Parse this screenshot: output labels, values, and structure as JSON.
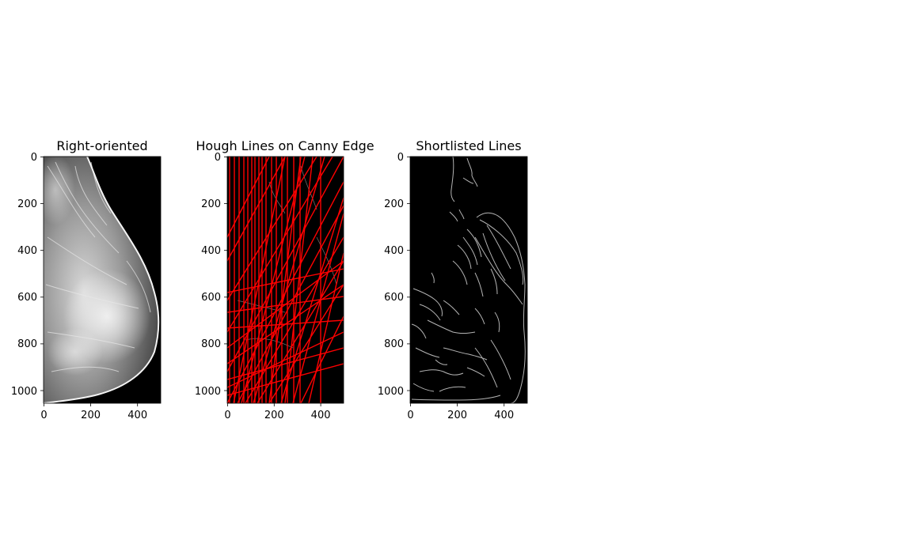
{
  "figure": {
    "panels": [
      {
        "id": "right-oriented",
        "title": "Right-oriented",
        "image": "grayscale mammogram, breast tissue facing right",
        "x_ticks": [
          "0",
          "200",
          "400"
        ],
        "y_ticks": [
          "0",
          "200",
          "400",
          "600",
          "800",
          "1000"
        ]
      },
      {
        "id": "hough-lines",
        "title": "Hough Lines on Canny Edge",
        "image": "canny edge map with many red hough lines overlaid",
        "line_color": "#ff0000",
        "x_ticks": [
          "0",
          "200",
          "400"
        ],
        "y_ticks": [
          "0",
          "200",
          "400",
          "600",
          "800",
          "1000"
        ]
      },
      {
        "id": "shortlisted-lines",
        "title": "Shortlisted Lines",
        "image": "canny edge map, gray edges on black",
        "edge_color": "#b4b4b4",
        "x_ticks": [
          "0",
          "200",
          "400"
        ],
        "y_ticks": [
          "0",
          "200",
          "400",
          "600",
          "800",
          "1000"
        ]
      }
    ],
    "colors": {
      "background": "#ffffff",
      "image_background": "#000000",
      "hough_line": "#ff0000"
    }
  }
}
